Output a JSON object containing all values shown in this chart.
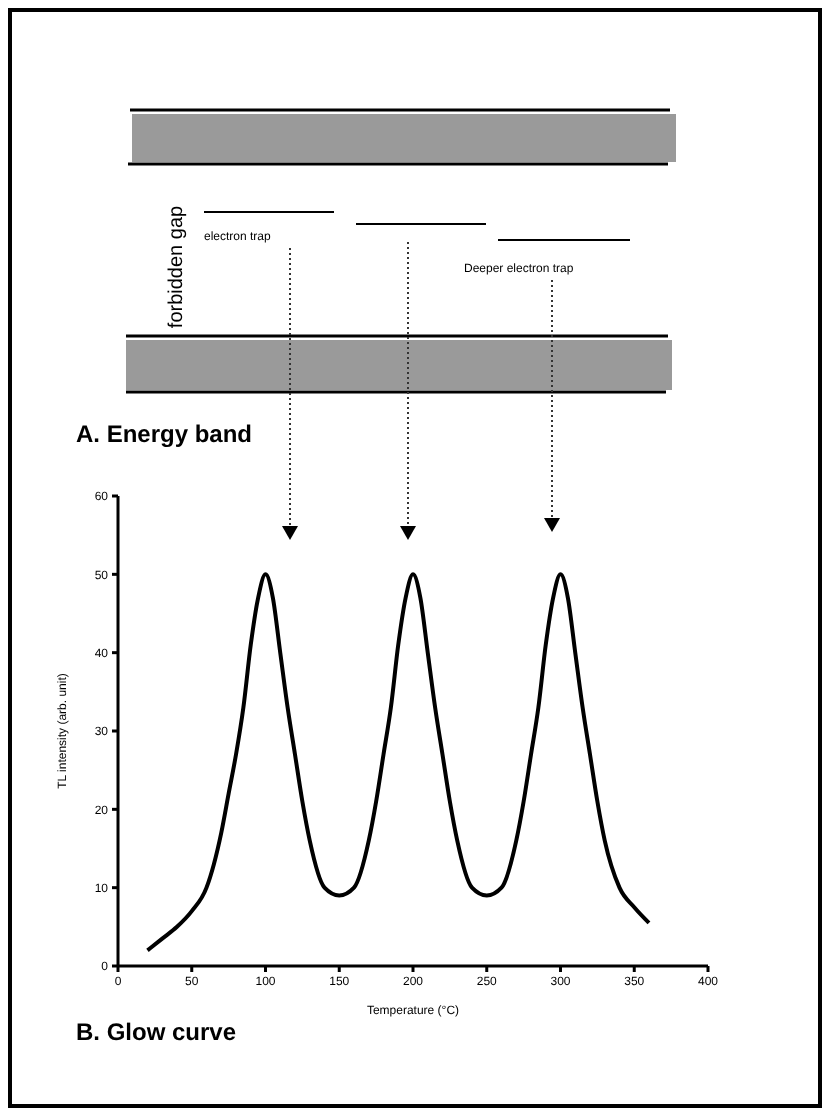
{
  "chart_data": {
    "type": "line",
    "title": "B. Glow curve",
    "xlabel": "Temperature (°C)",
    "ylabel": "TL intensity (arb. unit)",
    "annotations": [
      "A. Energy band",
      "forbidden gap",
      "electron trap",
      "Deeper  electron trap"
    ],
    "x": [
      20,
      30,
      40,
      50,
      60,
      65,
      70,
      75,
      80,
      85,
      90,
      95,
      100,
      105,
      110,
      115,
      120,
      125,
      130,
      140,
      150,
      160,
      170,
      175,
      180,
      185,
      190,
      195,
      200,
      205,
      210,
      215,
      220,
      225,
      230,
      240,
      250,
      260,
      270,
      275,
      280,
      285,
      290,
      295,
      300,
      305,
      310,
      315,
      320,
      325,
      330,
      340,
      350,
      360
    ],
    "series": [
      {
        "color": "#000000",
        "values": [
          2,
          3.5,
          5,
          7,
          10,
          13,
          17,
          22,
          27,
          33,
          41,
          47,
          50,
          47,
          40,
          33,
          27,
          21,
          16,
          10,
          9,
          10,
          16,
          21,
          27,
          33,
          41,
          47,
          50,
          47,
          40,
          33,
          27,
          21,
          16,
          10,
          9,
          10,
          16,
          21,
          27,
          33,
          41,
          47,
          50,
          47,
          40,
          33,
          27,
          21,
          16,
          10,
          7.5,
          5.5
        ]
      }
    ],
    "xlim": [
      0,
      400
    ],
    "xticks": [
      0,
      50,
      100,
      150,
      200,
      250,
      300,
      350,
      400
    ],
    "ylim": [
      0,
      60
    ],
    "yticks": [
      0,
      10,
      20,
      30,
      40,
      50,
      60
    ],
    "grid": false,
    "legend": false,
    "marker": "none",
    "line_style": "solid"
  }
}
